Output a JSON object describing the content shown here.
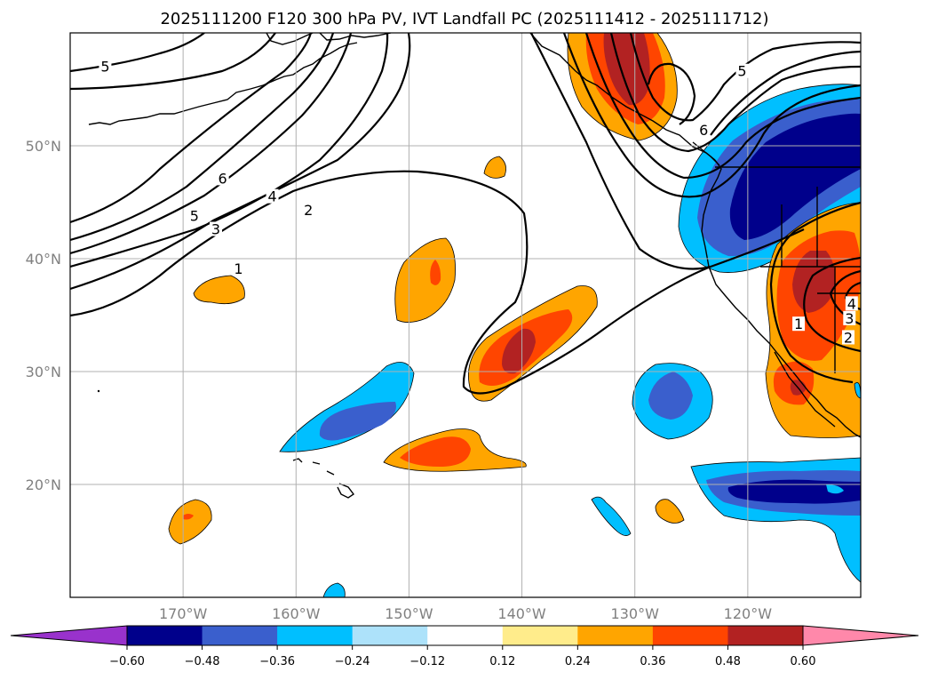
{
  "chart_data": {
    "type": "contour-map",
    "title": "2025111200 F120 300 hPa PV, IVT Landfall PC (2025111412 - 2025111712)",
    "extent": {
      "lon": [
        -180,
        -110
      ],
      "lat": [
        10,
        60
      ]
    },
    "x_ticks": [
      {
        "lon": -170,
        "label": "170°W"
      },
      {
        "lon": -160,
        "label": "160°W"
      },
      {
        "lon": -150,
        "label": "150°W"
      },
      {
        "lon": -140,
        "label": "140°W"
      },
      {
        "lon": -130,
        "label": "130°W"
      },
      {
        "lon": -120,
        "label": "120°W"
      }
    ],
    "y_ticks": [
      {
        "lat": 50,
        "label": "50°N"
      },
      {
        "lat": 40,
        "label": "40°N"
      },
      {
        "lat": 30,
        "label": "30°N"
      },
      {
        "lat": 20,
        "label": "20°N"
      }
    ],
    "colorbar": {
      "levels": [
        -0.6,
        -0.48,
        -0.36,
        -0.24,
        -0.12,
        0.12,
        0.24,
        0.36,
        0.48,
        0.6
      ],
      "tick_labels": [
        "−0.60",
        "−0.48",
        "−0.36",
        "−0.24",
        "−0.12",
        "0.12",
        "0.24",
        "0.36",
        "0.48",
        "0.60"
      ],
      "colors": [
        "#9932CC",
        "#00008B",
        "#3A5FCD",
        "#00BFFF",
        "#ADE2FA",
        "#FFFFFF",
        "#FFEC8B",
        "#FFA500",
        "#FF4500",
        "#B22222",
        "#FF88AA"
      ],
      "extend": "both"
    },
    "pv_contour_levels": [
      1,
      2,
      3,
      4,
      5,
      6
    ],
    "pv_contour_labels": [
      {
        "text": "5",
        "lon": -176.9,
        "lat": 56.8
      },
      {
        "text": "6",
        "lon": -166.5,
        "lat": 46.9
      },
      {
        "text": "4",
        "lon": -162.1,
        "lat": 45.3
      },
      {
        "text": "5",
        "lon": -169.0,
        "lat": 43.6
      },
      {
        "text": "2",
        "lon": -158.9,
        "lat": 44.1
      },
      {
        "text": "3",
        "lon": -167.1,
        "lat": 42.4
      },
      {
        "text": "1",
        "lon": -165.1,
        "lat": 38.9
      },
      {
        "text": "5",
        "lon": -120.5,
        "lat": 56.4
      },
      {
        "text": "6",
        "lon": -123.9,
        "lat": 51.2
      },
      {
        "text": "4",
        "lon": -110.8,
        "lat": 35.8
      },
      {
        "text": "3",
        "lon": -111.0,
        "lat": 34.5
      },
      {
        "text": "2",
        "lon": -111.1,
        "lat": 32.8
      },
      {
        "text": "1",
        "lon": -115.5,
        "lat": 34.0
      }
    ]
  }
}
